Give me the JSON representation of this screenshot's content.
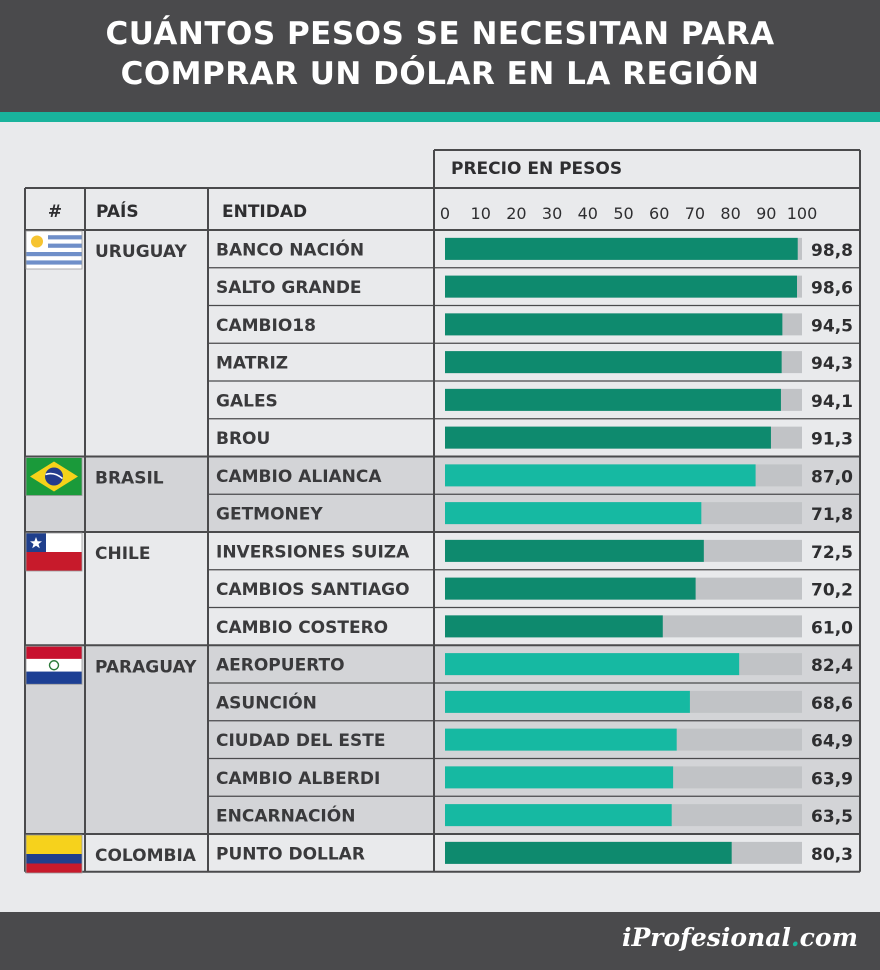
{
  "title_line1": "CUÁNTOS PESOS SE NECESITAN PARA",
  "title_line2": "COMPRAR UN DÓLAR EN LA REGIÓN",
  "brand": {
    "prefix": "iProfesional",
    "suffix": "com"
  },
  "colors": {
    "dark_green": "#0e8a6e",
    "light_green": "#16b9a2",
    "track": "#c1c3c6",
    "header_bg": "#4a4a4c",
    "accent": "#19b39c"
  },
  "chart_data": {
    "type": "bar",
    "orientation": "horizontal",
    "title": "CUÁNTOS PESOS SE NECESITAN PARA COMPRAR UN DÓLAR EN LA REGIÓN",
    "xlabel": "PRECIO EN PESOS",
    "xlim": [
      0,
      100
    ],
    "ticks": [
      "0",
      "10",
      "20",
      "30",
      "40",
      "50",
      "60",
      "70",
      "80",
      "90",
      "100"
    ],
    "columns": {
      "num": "#",
      "country": "PAÍS",
      "entity": "ENTIDAD"
    },
    "countries": [
      {
        "name": "URUGUAY",
        "flag": "uruguay-flag",
        "rows": [
          {
            "entity": "BANCO NACIÓN",
            "value": 98.8,
            "label": "98,8"
          },
          {
            "entity": "SALTO GRANDE",
            "value": 98.6,
            "label": "98,6"
          },
          {
            "entity": "CAMBIO18",
            "value": 94.5,
            "label": "94,5"
          },
          {
            "entity": "MATRIZ",
            "value": 94.3,
            "label": "94,3"
          },
          {
            "entity": "GALES",
            "value": 94.1,
            "label": "94,1"
          },
          {
            "entity": "BROU",
            "value": 91.3,
            "label": "91,3"
          }
        ]
      },
      {
        "name": "BRASIL",
        "flag": "brazil-flag",
        "rows": [
          {
            "entity": "CAMBIO ALIANCA",
            "value": 87.0,
            "label": "87,0"
          },
          {
            "entity": "GETMONEY",
            "value": 71.8,
            "label": "71,8"
          }
        ]
      },
      {
        "name": "CHILE",
        "flag": "chile-flag",
        "rows": [
          {
            "entity": "INVERSIONES SUIZA",
            "value": 72.5,
            "label": "72,5"
          },
          {
            "entity": "CAMBIOS SANTIAGO",
            "value": 70.2,
            "label": "70,2"
          },
          {
            "entity": "CAMBIO COSTERO",
            "value": 61.0,
            "label": "61,0"
          }
        ]
      },
      {
        "name": "PARAGUAY",
        "flag": "paraguay-flag",
        "rows": [
          {
            "entity": "AEROPUERTO",
            "value": 82.4,
            "label": "82,4"
          },
          {
            "entity": "ASUNCIÓN",
            "value": 68.6,
            "label": "68,6"
          },
          {
            "entity": "CIUDAD DEL ESTE",
            "value": 64.9,
            "label": "64,9"
          },
          {
            "entity": "CAMBIO ALBERDI",
            "value": 63.9,
            "label": "63,9"
          },
          {
            "entity": "ENCARNACIÓN",
            "value": 63.5,
            "label": "63,5"
          }
        ]
      },
      {
        "name": "COLOMBIA",
        "flag": "colombia-flag",
        "rows": [
          {
            "entity": "PUNTO DOLLAR",
            "value": 80.3,
            "label": "80,3"
          }
        ]
      }
    ]
  }
}
